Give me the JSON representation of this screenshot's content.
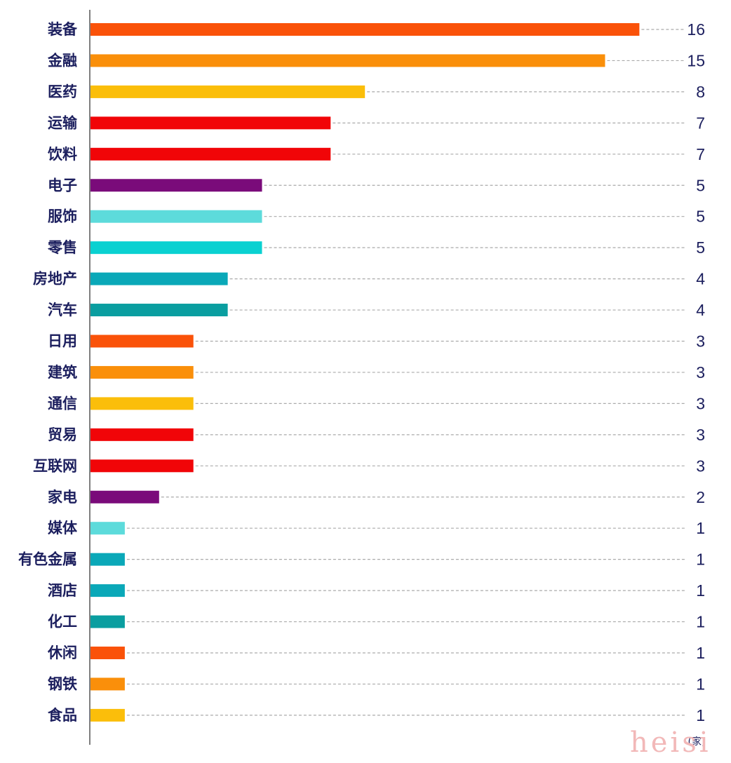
{
  "chart_data": {
    "type": "bar",
    "orientation": "horizontal",
    "categories": [
      "装备",
      "金融",
      "医药",
      "运输",
      "饮料",
      "电子",
      "服饰",
      "零售",
      "房地产",
      "汽车",
      "日用",
      "建筑",
      "通信",
      "贸易",
      "互联网",
      "家电",
      "媒体",
      "有色金属",
      "酒店",
      "化工",
      "休闲",
      "钢铁",
      "食品"
    ],
    "values": [
      16,
      15,
      8,
      7,
      7,
      5,
      5,
      5,
      4,
      4,
      3,
      3,
      3,
      3,
      3,
      2,
      1,
      1,
      1,
      1,
      1,
      1,
      1
    ],
    "colors": [
      "#fa5209",
      "#fa8f0a",
      "#fbbe0a",
      "#f10508",
      "#f10508",
      "#7a0b7a",
      "#5ddbdb",
      "#0ad1d1",
      "#0aa8b8",
      "#0a9ea0",
      "#fa5209",
      "#fa8f0a",
      "#fbbe0a",
      "#f10508",
      "#f10508",
      "#7a0b7a",
      "#5ddbdb",
      "#0aa8b8",
      "#0aa8b8",
      "#0a9ea0",
      "#fa5209",
      "#fa8f0a",
      "#fbbe0a"
    ],
    "unit": "(家)",
    "xlim": [
      0,
      16
    ],
    "grid": false,
    "leader_lines": "dashed",
    "axis_color": "#555555",
    "leader_color": "#aaaaaa"
  },
  "watermark": "heisi"
}
